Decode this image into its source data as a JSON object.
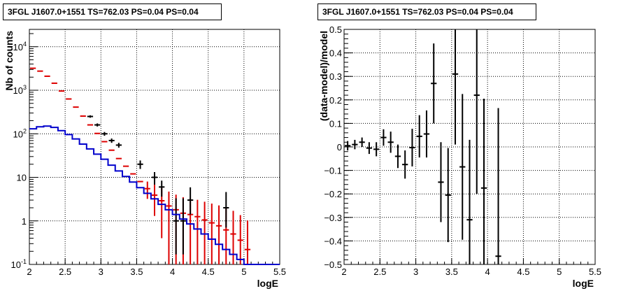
{
  "chart_data": [
    {
      "type": "line",
      "title": "3FGL J1607.0+1551 TS=762.03 PS=0.04 PS=0.04",
      "xlabel": "logE",
      "ylabel": "Nb of counts",
      "xlim": [
        2,
        5.5
      ],
      "ylim": [
        0.1,
        25000
      ],
      "yscale": "log",
      "grid": true,
      "x_ticks": [
        "2",
        "2.5",
        "3",
        "3.5",
        "4",
        "4.5",
        "5",
        "5.5"
      ],
      "y_ticks": [
        {
          "value": 0.1,
          "label": "10",
          "exp": "-1"
        },
        {
          "value": 1,
          "label": "1",
          "exp": ""
        },
        {
          "value": 10,
          "label": "10",
          "exp": ""
        },
        {
          "value": 100,
          "label": "10",
          "exp": "2"
        },
        {
          "value": 1000,
          "label": "10",
          "exp": "3"
        },
        {
          "value": 10000,
          "label": "10",
          "exp": "4"
        }
      ],
      "bin_width": 0.1,
      "series": [
        {
          "role": "model-total",
          "color": "#dd0000",
          "x": [
            2.05,
            2.15,
            2.25,
            2.35,
            2.45,
            2.55,
            2.65,
            2.75,
            2.85,
            2.95,
            3.05,
            3.15,
            3.25,
            3.35,
            3.45,
            3.55,
            3.65,
            3.75,
            3.85,
            3.95,
            4.05,
            4.15,
            4.25,
            4.35,
            4.45,
            4.55,
            4.65,
            4.75,
            4.85,
            4.95,
            5.05
          ],
          "y": [
            3200,
            2750,
            2100,
            1450,
            960,
            630,
            410,
            255,
            160,
            102,
            66,
            42,
            27,
            18,
            12,
            8,
            5.5,
            3.9,
            2.9,
            2.2,
            1.8,
            1.5,
            1.4,
            1.25,
            1.05,
            0.9,
            0.77,
            0.62,
            0.5,
            0.36,
            0.22
          ],
          "err_low": [
            0,
            0,
            0,
            0,
            0,
            0,
            0,
            0,
            0,
            0,
            0,
            0,
            0,
            0,
            0,
            0,
            2.3,
            2.6,
            2.5,
            2.1,
            1.75,
            1.45,
            1.35,
            1.2,
            1.0,
            0.86,
            0.73,
            0.6,
            0.48,
            0.35,
            0.21
          ],
          "err_high": [
            0,
            0,
            0,
            0,
            0,
            0,
            0,
            0,
            0,
            0,
            0,
            0,
            0,
            0,
            0,
            0,
            2.5,
            3.0,
            2.8,
            2.5,
            2.2,
            2.0,
            1.9,
            1.8,
            1.7,
            1.6,
            1.5,
            1.4,
            1.2,
            1.0,
            0.8
          ]
        },
        {
          "role": "data",
          "color": "#000000",
          "x": [
            2.85,
            2.95,
            3.05,
            3.15,
            3.25,
            3.55,
            3.75,
            3.85,
            4.05,
            4.15,
            4.25,
            4.75
          ],
          "y": [
            250,
            160,
            100,
            70,
            55,
            20,
            10,
            6,
            1,
            1,
            3,
            2
          ],
          "err_low": [
            16,
            13,
            10,
            8,
            7,
            4.4,
            3.2,
            2.4,
            0.83,
            0.83,
            1.6,
            1.3
          ],
          "err_high": [
            16,
            13,
            10,
            8,
            7,
            4.4,
            3.2,
            2.4,
            2.3,
            2.3,
            2.9,
            2.6
          ]
        },
        {
          "role": "model-source",
          "color": "#0000cc",
          "x": [
            2.05,
            2.15,
            2.25,
            2.35,
            2.45,
            2.55,
            2.65,
            2.75,
            2.85,
            2.95,
            3.05,
            3.15,
            3.25,
            3.35,
            3.45,
            3.55,
            3.65,
            3.75,
            3.85,
            3.95,
            4.05,
            4.15,
            4.25,
            4.35,
            4.45,
            4.55,
            4.65,
            4.75,
            4.85,
            4.95,
            5.05,
            5.15,
            5.25,
            5.35,
            5.45
          ],
          "y": [
            130,
            145,
            150,
            140,
            118,
            96,
            76,
            58,
            45,
            34,
            26,
            19,
            14,
            10.5,
            7.8,
            5.8,
            4.3,
            3.2,
            2.4,
            1.8,
            1.4,
            1.1,
            0.85,
            0.65,
            0.5,
            0.38,
            0.29,
            0.22,
            0.17,
            0.13,
            0.1,
            0.1,
            0.1,
            0.1,
            0.1
          ]
        }
      ]
    },
    {
      "type": "scatter",
      "title": "3FGL J1607.0+1551 TS=762.03 PS=0.04 PS=0.04",
      "xlabel": "logE",
      "ylabel": "(data-model)/model",
      "xlim": [
        2,
        5.5
      ],
      "ylim": [
        -0.5,
        0.5
      ],
      "grid": true,
      "x_ticks": [
        "2",
        "2.5",
        "3",
        "3.5",
        "4",
        "4.5",
        "5",
        "5.5"
      ],
      "y_ticks": [
        "-0.5",
        "-0.4",
        "-0.3",
        "-0.2",
        "-0.1",
        "0",
        "0.1",
        "0.2",
        "0.3",
        "0.4",
        "0.5"
      ],
      "bin_width": 0.1,
      "series": [
        {
          "role": "residual",
          "color": "#000000",
          "x": [
            2.05,
            2.15,
            2.25,
            2.35,
            2.45,
            2.55,
            2.65,
            2.75,
            2.85,
            2.95,
            3.05,
            3.15,
            3.25,
            3.35,
            3.45,
            3.55,
            3.65,
            3.75,
            3.85,
            3.95,
            4.15
          ],
          "y": [
            0.005,
            0.01,
            0.02,
            -0.005,
            -0.01,
            0.04,
            0.02,
            -0.04,
            -0.075,
            -0.003,
            0.045,
            0.055,
            0.27,
            -0.15,
            -0.205,
            0.31,
            -0.085,
            -0.31,
            0.22,
            -0.175,
            -0.465
          ],
          "err": [
            0.02,
            0.02,
            0.02,
            0.025,
            0.03,
            0.035,
            0.045,
            0.05,
            0.06,
            0.08,
            0.09,
            0.1,
            0.17,
            0.17,
            0.2,
            0.3,
            0.31,
            0.34,
            0.42,
            0.38,
            0.63
          ]
        }
      ]
    }
  ]
}
